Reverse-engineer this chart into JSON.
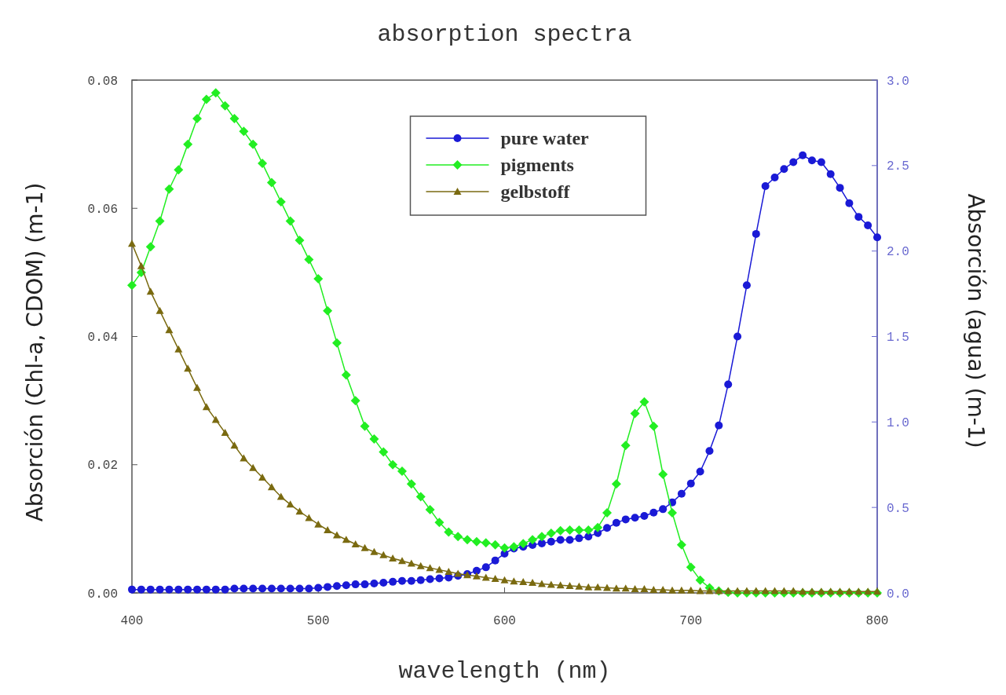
{
  "chart_data": {
    "type": "line",
    "title": "absorption spectra",
    "xlabel": "wavelength  (nm)",
    "ylabel": "Absorción (Chl-a, CDOM) (m-1)",
    "y2label": "Absorción (agua) (m-1)",
    "x": [
      400,
      405,
      410,
      415,
      420,
      425,
      430,
      435,
      440,
      445,
      450,
      455,
      460,
      465,
      470,
      475,
      480,
      485,
      490,
      495,
      500,
      505,
      510,
      515,
      520,
      525,
      530,
      535,
      540,
      545,
      550,
      555,
      560,
      565,
      570,
      575,
      580,
      585,
      590,
      595,
      600,
      605,
      610,
      615,
      620,
      625,
      630,
      635,
      640,
      645,
      650,
      655,
      660,
      665,
      670,
      675,
      680,
      685,
      690,
      695,
      700,
      705,
      710,
      715,
      720,
      725,
      730,
      735,
      740,
      745,
      750,
      755,
      760,
      765,
      770,
      775,
      780,
      785,
      790,
      795,
      800
    ],
    "xlim": [
      400,
      800
    ],
    "xticks": [
      400,
      500,
      600,
      700,
      800
    ],
    "ylim": [
      0,
      0.08
    ],
    "yticks": [
      {
        "value": 0,
        "label": "0.00"
      },
      {
        "value": 0.02,
        "label": "0.02"
      },
      {
        "value": 0.04,
        "label": "0.04"
      },
      {
        "value": 0.06,
        "label": "0.06"
      },
      {
        "value": 0.08,
        "label": "0.08"
      }
    ],
    "y2lim": [
      0,
      3
    ],
    "y2ticks": [
      {
        "value": 0,
        "label": "0.0"
      },
      {
        "value": 0.5,
        "label": "0.5"
      },
      {
        "value": 1,
        "label": "1.0"
      },
      {
        "value": 1.5,
        "label": "1.5"
      },
      {
        "value": 2,
        "label": "2.0"
      },
      {
        "value": 2.5,
        "label": "2.5"
      },
      {
        "value": 3,
        "label": "3.0"
      }
    ],
    "grid": false,
    "legend": "top",
    "line_style": "solid",
    "series": [
      {
        "name": "pure water",
        "color": "#1a1ad6",
        "axis": "y2",
        "marker": "circle",
        "values": [
          0.02,
          0.02,
          0.02,
          0.02,
          0.02,
          0.02,
          0.02,
          0.02,
          0.02,
          0.02,
          0.02,
          0.025,
          0.025,
          0.025,
          0.025,
          0.025,
          0.025,
          0.025,
          0.025,
          0.025,
          0.03,
          0.035,
          0.04,
          0.045,
          0.05,
          0.05,
          0.055,
          0.06,
          0.065,
          0.07,
          0.07,
          0.075,
          0.08,
          0.085,
          0.09,
          0.1,
          0.11,
          0.13,
          0.15,
          0.19,
          0.23,
          0.26,
          0.27,
          0.28,
          0.29,
          0.3,
          0.31,
          0.31,
          0.32,
          0.33,
          0.35,
          0.38,
          0.41,
          0.43,
          0.44,
          0.45,
          0.47,
          0.49,
          0.53,
          0.58,
          0.64,
          0.71,
          0.83,
          0.98,
          1.22,
          1.5,
          1.8,
          2.1,
          2.38,
          2.43,
          2.48,
          2.52,
          2.56,
          2.53,
          2.52,
          2.45,
          2.37,
          2.28,
          2.2,
          2.15,
          2.08
        ]
      },
      {
        "name": "pigments",
        "color": "#22ee22",
        "marker": "diamond",
        "values": [
          0.048,
          0.05,
          0.054,
          0.058,
          0.063,
          0.066,
          0.07,
          0.074,
          0.077,
          0.078,
          0.076,
          0.074,
          0.072,
          0.07,
          0.067,
          0.064,
          0.061,
          0.058,
          0.055,
          0.052,
          0.049,
          0.044,
          0.039,
          0.034,
          0.03,
          0.026,
          0.024,
          0.022,
          0.02,
          0.019,
          0.017,
          0.015,
          0.013,
          0.011,
          0.0095,
          0.0088,
          0.0083,
          0.008,
          0.0078,
          0.0075,
          0.007,
          0.0072,
          0.0077,
          0.0083,
          0.0088,
          0.0093,
          0.0097,
          0.0098,
          0.0098,
          0.0098,
          0.0102,
          0.0125,
          0.017,
          0.023,
          0.028,
          0.0298,
          0.026,
          0.0185,
          0.0125,
          0.0075,
          0.004,
          0.002,
          0.0008,
          0.0003,
          0.0001,
          0,
          0,
          0,
          0,
          0,
          0,
          0,
          0,
          0,
          0,
          0,
          0,
          0,
          0,
          0,
          0
        ]
      },
      {
        "name": "gelbstoff",
        "color": "#7a6a10",
        "marker": "triangle",
        "values": [
          0.0545,
          0.051,
          0.047,
          0.044,
          0.041,
          0.038,
          0.035,
          0.032,
          0.029,
          0.027,
          0.025,
          0.023,
          0.021,
          0.0195,
          0.018,
          0.0165,
          0.015,
          0.0138,
          0.0127,
          0.0117,
          0.0107,
          0.0098,
          0.009,
          0.0083,
          0.0076,
          0.007,
          0.0064,
          0.0059,
          0.0054,
          0.005,
          0.0046,
          0.0042,
          0.0039,
          0.0036,
          0.0033,
          0.003,
          0.0028,
          0.0026,
          0.0024,
          0.0022,
          0.002,
          0.0018,
          0.0017,
          0.0016,
          0.0014,
          0.0013,
          0.0012,
          0.0011,
          0.001,
          0.0009,
          0.0009,
          0.0008,
          0.0007,
          0.0007,
          0.0006,
          0.0006,
          0.0005,
          0.0005,
          0.0004,
          0.0004,
          0.0004,
          0.0003,
          0.0003,
          0.0003,
          0.0003,
          0.0003,
          0.0003,
          0.0003,
          0.0003,
          0.0003,
          0.0003,
          0.0003,
          0.0002,
          0.0002,
          0.0002,
          0.0002,
          0.0002,
          0.0002,
          0.0002,
          0.0002,
          0.0002
        ]
      }
    ]
  }
}
